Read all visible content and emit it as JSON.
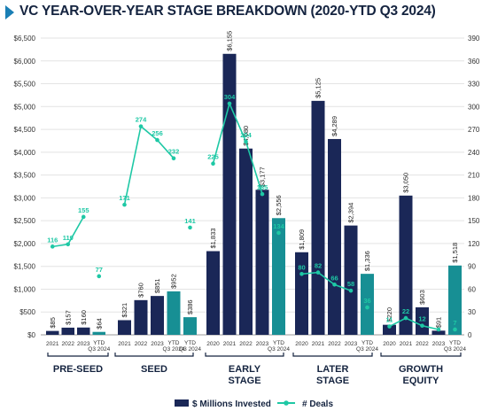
{
  "title": "VC YEAR-OVER-YEAR STAGE BREAKDOWN (2020-YTD Q3 2024)",
  "colors": {
    "invested": "#1a2757",
    "invested_ytd": "#178f94",
    "deals": "#1ec8a5",
    "title_accent": "#1a7fb5"
  },
  "chart_data": {
    "type": "bar",
    "left_axis": {
      "ticks": [
        "$0",
        "$500",
        "$1,000",
        "$1,500",
        "$2,000",
        "$2,500",
        "$3,000",
        "$3,500",
        "$4,000",
        "$4,500",
        "$5,000",
        "$5,500",
        "$6,000",
        "$6,500"
      ],
      "range": [
        0,
        6500
      ]
    },
    "right_axis": {
      "ticks": [
        "0",
        "30",
        "60",
        "90",
        "120",
        "150",
        "180",
        "210",
        "240",
        "270",
        "300",
        "330",
        "360",
        "390"
      ],
      "range": [
        0,
        390
      ]
    },
    "legend": [
      {
        "label": "$ Millions Invested",
        "kind": "bar"
      },
      {
        "label": "# Deals",
        "kind": "line"
      }
    ],
    "groups": [
      {
        "label_lines": [
          "PRE-SEED"
        ],
        "categories": [
          "2021",
          "2022",
          "2023",
          "YTD Q3 2024"
        ],
        "invested": [
          85,
          157,
          160,
          64
        ],
        "invested_labels": [
          "$85",
          "$157",
          "$160",
          "$64"
        ],
        "deals": [
          116,
          119,
          155,
          77
        ],
        "deal_labels": [
          "116",
          "119",
          "155",
          "77"
        ]
      },
      {
        "label_lines": [
          "SEED"
        ],
        "categories": [
          "2021",
          "2022",
          "2023",
          "YTD Q3 2024"
        ],
        "invested": [
          321,
          760,
          851,
          952
        ],
        "invested_labels": [
          "$321",
          "$760",
          "$851",
          "$952"
        ],
        "ytd_invested": 386,
        "ytd_label": "$386",
        "deals": [
          171,
          274,
          256,
          232
        ],
        "deal_labels": [
          "171",
          "274",
          "256",
          "232"
        ],
        "ytd_deals": 141,
        "ytd_deal_label": "141"
      },
      {
        "label_lines": [
          "EARLY",
          "STAGE"
        ],
        "categories": [
          "2020",
          "2021",
          "2022",
          "2023",
          "YTD Q3 2024"
        ],
        "invested": [
          1833,
          6155,
          4080,
          3177,
          2556
        ],
        "invested_labels": [
          "$1,833",
          "$6,155",
          "$4,080",
          "$3,177",
          "$2,556"
        ],
        "deals": [
          225,
          304,
          254,
          185,
          134
        ],
        "deal_labels": [
          "225",
          "304",
          "254",
          "185",
          "134"
        ]
      },
      {
        "label_lines": [
          "LATER",
          "STAGE"
        ],
        "categories": [
          "2020",
          "2021",
          "2022",
          "2023",
          "YTD Q3 2024"
        ],
        "invested": [
          1809,
          5125,
          4289,
          2394,
          1336
        ],
        "invested_labels": [
          "$1,809",
          "$5,125",
          "$4,289",
          "$2,394",
          "$1,336"
        ],
        "deals": [
          80,
          82,
          66,
          58,
          36
        ],
        "deal_labels": [
          "80",
          "82",
          "66",
          "58",
          "36"
        ]
      },
      {
        "label_lines": [
          "GROWTH",
          "EQUITY"
        ],
        "categories": [
          "2020",
          "2021",
          "2022",
          "2023",
          "YTD Q3 2024"
        ],
        "invested": [
          220,
          3050,
          603,
          91,
          1518
        ],
        "invested_labels": [
          "$220",
          "$3,050",
          "$603",
          "$91",
          "$1,518"
        ],
        "deals": [
          11,
          22,
          12,
          7,
          7
        ],
        "deal_labels": [
          "11",
          "22",
          "12",
          "",
          "7"
        ]
      }
    ]
  }
}
